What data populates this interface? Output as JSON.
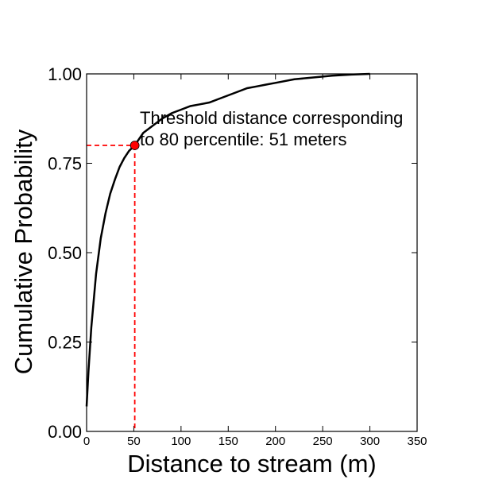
{
  "chart_data": {
    "type": "line",
    "title": "",
    "xlabel": "Distance to stream (m)",
    "ylabel": "Cumulative Probability",
    "xlim": [
      0,
      350
    ],
    "ylim": [
      0,
      1
    ],
    "xticks": [
      0,
      50,
      100,
      150,
      200,
      250,
      300,
      350
    ],
    "yticks": [
      0.0,
      0.25,
      0.5,
      0.75,
      1.0
    ],
    "xtick_labels": [
      "0",
      "50",
      "100",
      "150",
      "200",
      "250",
      "300",
      "350"
    ],
    "ytick_labels": [
      "0.00",
      "0.25",
      "0.50",
      "0.75",
      "1.00"
    ],
    "grid": false,
    "legend": "none",
    "series": [
      {
        "style": "solid",
        "color": "#000000",
        "x": [
          0,
          2,
          5,
          10,
          15,
          20,
          25,
          30,
          35,
          40,
          45,
          51,
          60,
          70,
          80,
          90,
          100,
          110,
          120,
          130,
          140,
          150,
          160,
          170,
          180,
          190,
          200,
          220,
          240,
          260,
          280,
          300
        ],
        "y": [
          0.07,
          0.17,
          0.29,
          0.44,
          0.54,
          0.61,
          0.665,
          0.705,
          0.74,
          0.765,
          0.785,
          0.8,
          0.835,
          0.855,
          0.875,
          0.89,
          0.9,
          0.91,
          0.915,
          0.92,
          0.93,
          0.94,
          0.95,
          0.96,
          0.965,
          0.97,
          0.975,
          0.985,
          0.99,
          0.995,
          0.998,
          1.0
        ]
      }
    ],
    "threshold": {
      "x": 51,
      "y": 0.8,
      "line_color": "#ff0000",
      "marker_color": "#ff0000"
    },
    "annotation_lines": [
      "Threshold distance corresponding",
      "to 80 percentile: 51 meters"
    ]
  }
}
